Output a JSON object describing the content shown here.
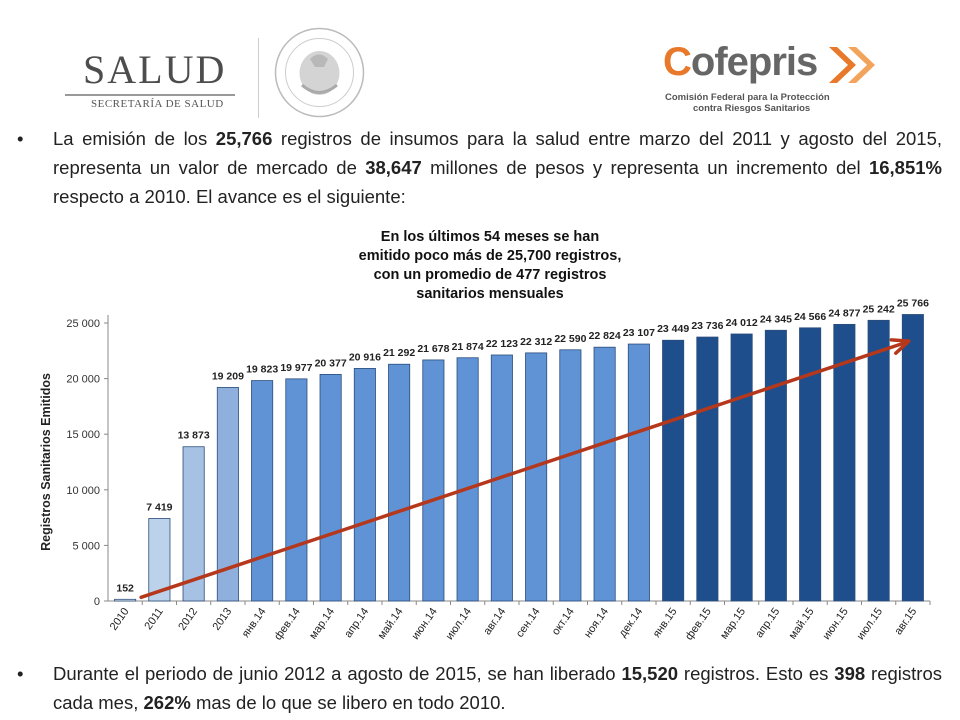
{
  "header": {
    "salud_logo": {
      "word": "SALUD",
      "subtitle": "SECRETARÍA DE SALUD"
    },
    "seal_text": "ESTADOS UNIDOS MEXICANOS",
    "cofepris_logo": {
      "word_c": "C",
      "word_rest": "ofepris",
      "subtitle_line1": "Comisión Federal para la Protección",
      "subtitle_line2": "contra Riesgos Sanitarios"
    }
  },
  "bullets": {
    "top": {
      "t1": "La emisión de los ",
      "b1": "25,766",
      "t2": " registros de insumos para la salud entre marzo del 2011 y agosto del 2015, representa un valor de mercado de ",
      "b2": "38,647",
      "t3": " millones de pesos y representa un incremento del ",
      "b3": "16,851%",
      "t4": " respecto a 2010. El avance es el siguiente:"
    },
    "bottom": {
      "t1": "Durante el periodo de junio 2012 a agosto de 2015, se han liberado ",
      "b1": "15,520",
      "t2": " registros. Esto es ",
      "b2": "398",
      "t3": " registros cada mes, ",
      "b3": "262%",
      "t4": " mas de lo que se libero en todo 2010."
    }
  },
  "chart_data": {
    "type": "bar",
    "title_lines": [
      "En los últimos 54 meses se han",
      "emitido poco más de  25,700 registros,",
      "con un promedio de 477 registros",
      "sanitarios mensuales"
    ],
    "ylabel": "Registros Sanitarios Emitidos",
    "xlabel": "",
    "ylim": [
      0,
      25000
    ],
    "yticks": [
      0,
      5000,
      10000,
      15000,
      20000,
      25000
    ],
    "ytick_labels": [
      "0",
      "5 000",
      "10 000",
      "15 000",
      "20 000",
      "25 000"
    ],
    "categories": [
      "2010",
      "2011",
      "2012",
      "2013",
      "янв.14",
      "фев.14",
      "мар.14",
      "апр.14",
      "май.14",
      "июн.14",
      "июл.14",
      "авг.14",
      "сен.14",
      "окт.14",
      "ноя.14",
      "дек.14",
      "янв.15",
      "фев.15",
      "мар.15",
      "апр.15",
      "май.15",
      "июн.15",
      "июл.15",
      "авг.15"
    ],
    "values": [
      152,
      7419,
      13873,
      19209,
      19823,
      19977,
      20377,
      20916,
      21292,
      21678,
      21874,
      22123,
      22312,
      22590,
      22824,
      23107,
      23449,
      23736,
      24012,
      24345,
      24566,
      24877,
      25242,
      25766
    ],
    "value_labels": [
      "152",
      "7 419",
      "13 873",
      "19 209",
      "19 823",
      "19 977",
      "20 377",
      "20 916",
      "21 292",
      "21 678",
      "21 874",
      "22 123",
      "22 312",
      "22 590",
      "22 824",
      "23 107",
      "23 449",
      "23 736",
      "24 012",
      "24 345",
      "24 566",
      "24 877",
      "25 242",
      "25 766"
    ],
    "bar_colors": [
      "#dde8f5",
      "#bcd1ea",
      "#a6c1e4",
      "#8fb0dc",
      "#5f93d6",
      "#5f93d6",
      "#5f93d6",
      "#5f93d6",
      "#5f93d6",
      "#5f93d6",
      "#5f93d6",
      "#5f93d6",
      "#5f93d6",
      "#5f93d6",
      "#5f93d6",
      "#5f93d6",
      "#1f4e8c",
      "#1f4e8c",
      "#1f4e8c",
      "#1f4e8c",
      "#1f4e8c",
      "#1f4e8c",
      "#1f4e8c",
      "#1f4e8c"
    ],
    "trend_line": {
      "from_value": 152,
      "to_value": 24000,
      "color": "#b5381c"
    },
    "grid": false
  }
}
